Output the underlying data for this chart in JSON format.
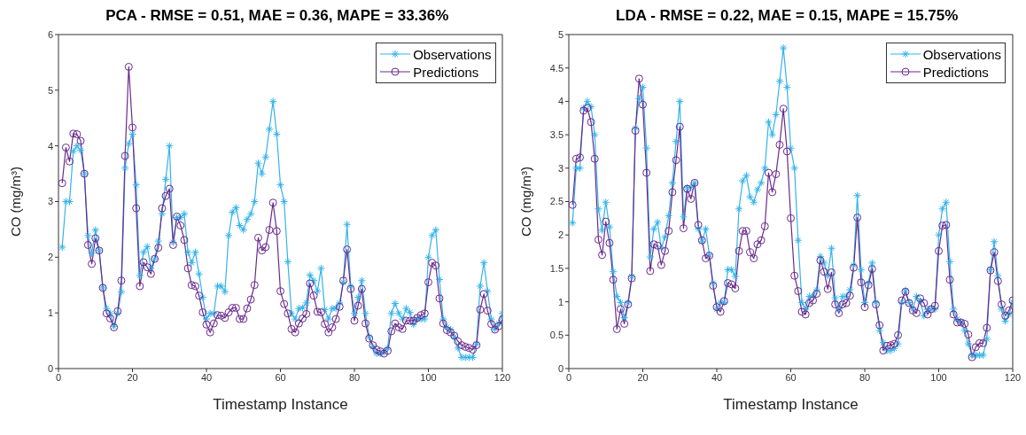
{
  "chart_data": [
    {
      "type": "line",
      "title": "PCA - RMSE = 0.51, MAE = 0.36, MAPE = 33.36%",
      "xlabel": "Timestamp Instance",
      "ylabel": "CO (mg/m³)",
      "x": [
        1,
        2,
        3,
        4,
        5,
        6,
        7,
        8,
        9,
        10,
        11,
        12,
        13,
        14,
        15,
        16,
        17,
        18,
        19,
        20,
        21,
        22,
        23,
        24,
        25,
        26,
        27,
        28,
        29,
        30,
        31,
        32,
        33,
        34,
        35,
        36,
        37,
        38,
        39,
        40,
        41,
        42,
        43,
        44,
        45,
        46,
        47,
        48,
        49,
        50,
        51,
        52,
        53,
        54,
        55,
        56,
        57,
        58,
        59,
        60,
        61,
        62,
        63,
        64,
        65,
        66,
        67,
        68,
        69,
        70,
        71,
        72,
        73,
        74,
        75,
        76,
        77,
        78,
        79,
        80,
        81,
        82,
        83,
        84,
        85,
        86,
        87,
        88,
        89,
        90,
        91,
        92,
        93,
        94,
        95,
        96,
        97,
        98,
        99,
        100,
        101,
        102,
        103,
        104,
        105,
        106,
        107,
        108,
        109,
        110,
        111,
        112,
        113,
        114,
        115,
        116,
        117,
        118,
        119,
        120
      ],
      "series": [
        {
          "name": "Observations",
          "color": "#35b3ea",
          "marker": "cross",
          "values": [
            2.18,
            3.0,
            3.0,
            3.9,
            4.0,
            3.92,
            3.5,
            2.39,
            2.07,
            2.49,
            2.12,
            1.45,
            1.08,
            0.99,
            0.76,
            0.99,
            1.38,
            3.6,
            4.04,
            4.21,
            3.3,
            1.67,
            2.09,
            2.19,
            1.8,
            1.97,
            2.29,
            2.78,
            3.4,
            4.0,
            2.27,
            2.71,
            2.71,
            2.78,
            2.09,
            1.9,
            2.09,
            1.7,
            1.28,
            0.89,
            0.99,
            0.99,
            1.48,
            1.48,
            1.38,
            2.39,
            2.81,
            2.89,
            2.57,
            2.49,
            2.68,
            2.78,
            3.0,
            3.69,
            3.5,
            3.8,
            4.3,
            4.8,
            4.21,
            3.3,
            3.0,
            1.92,
            0.99,
            0.89,
            1.08,
            1.09,
            1.18,
            1.68,
            1.58,
            1.39,
            1.8,
            1.06,
            0.89,
            1.08,
            1.08,
            1.18,
            1.55,
            2.59,
            1.48,
            0.99,
            1.28,
            1.58,
            0.99,
            0.57,
            0.39,
            0.27,
            0.27,
            0.3,
            0.37,
            0.99,
            1.17,
            0.99,
            0.89,
            1.08,
            1.01,
            0.79,
            0.89,
            0.89,
            0.89,
            2.0,
            2.39,
            2.49,
            1.6,
            0.89,
            0.74,
            0.7,
            0.57,
            0.37,
            0.2,
            0.2,
            0.2,
            0.2,
            0.44,
            1.48,
            1.9,
            1.39,
            0.89,
            0.71,
            0.81,
            0.99
          ]
        },
        {
          "name": "Predictions",
          "color": "#6a2a8c",
          "marker": "circle",
          "values": [
            3.33,
            3.97,
            3.72,
            4.22,
            4.21,
            4.09,
            3.5,
            2.22,
            1.88,
            2.34,
            2.12,
            1.45,
            0.99,
            0.9,
            0.74,
            1.03,
            1.58,
            3.82,
            5.42,
            4.33,
            2.88,
            1.48,
            1.91,
            1.82,
            1.7,
            1.97,
            2.17,
            2.88,
            3.1,
            3.23,
            2.22,
            2.73,
            2.57,
            2.31,
            1.8,
            1.5,
            1.48,
            1.31,
            1.01,
            0.79,
            0.65,
            0.81,
            0.96,
            0.95,
            0.91,
            1.01,
            1.09,
            1.09,
            0.89,
            0.89,
            1.08,
            1.24,
            1.5,
            2.35,
            2.12,
            2.18,
            2.49,
            2.98,
            2.47,
            1.39,
            1.16,
            0.99,
            0.71,
            0.65,
            0.81,
            0.9,
            0.98,
            1.53,
            1.31,
            1.02,
            1.01,
            0.8,
            0.65,
            0.74,
            0.89,
            1.11,
            1.58,
            2.14,
            1.43,
            0.86,
            1.13,
            1.43,
            0.81,
            0.54,
            0.42,
            0.34,
            0.31,
            0.27,
            0.32,
            0.67,
            0.81,
            0.74,
            0.71,
            0.86,
            0.86,
            0.86,
            0.91,
            0.96,
            0.99,
            1.55,
            1.9,
            1.85,
            1.26,
            0.81,
            0.69,
            0.65,
            0.59,
            0.49,
            0.42,
            0.39,
            0.37,
            0.34,
            0.42,
            1.06,
            1.34,
            1.04,
            0.8,
            0.7,
            0.76,
            0.88
          ]
        }
      ],
      "xlim": [
        0,
        120
      ],
      "xticks": [
        0,
        20,
        40,
        60,
        80,
        100,
        120
      ],
      "ylim": [
        0,
        6
      ],
      "yticks": [
        0,
        1,
        2,
        3,
        4,
        5,
        6
      ],
      "legend": "top right",
      "line_style": "solid"
    },
    {
      "type": "line",
      "title": "LDA - RMSE = 0.22, MAE = 0.15, MAPE = 15.75%",
      "xlabel": "Timestamp Instance",
      "ylabel": "CO (mg/m³)",
      "x": [
        1,
        2,
        3,
        4,
        5,
        6,
        7,
        8,
        9,
        10,
        11,
        12,
        13,
        14,
        15,
        16,
        17,
        18,
        19,
        20,
        21,
        22,
        23,
        24,
        25,
        26,
        27,
        28,
        29,
        30,
        31,
        32,
        33,
        34,
        35,
        36,
        37,
        38,
        39,
        40,
        41,
        42,
        43,
        44,
        45,
        46,
        47,
        48,
        49,
        50,
        51,
        52,
        53,
        54,
        55,
        56,
        57,
        58,
        59,
        60,
        61,
        62,
        63,
        64,
        65,
        66,
        67,
        68,
        69,
        70,
        71,
        72,
        73,
        74,
        75,
        76,
        77,
        78,
        79,
        80,
        81,
        82,
        83,
        84,
        85,
        86,
        87,
        88,
        89,
        90,
        91,
        92,
        93,
        94,
        95,
        96,
        97,
        98,
        99,
        100,
        101,
        102,
        103,
        104,
        105,
        106,
        107,
        108,
        109,
        110,
        111,
        112,
        113,
        114,
        115,
        116,
        117,
        118,
        119,
        120
      ],
      "series": [
        {
          "name": "Observations",
          "color": "#35b3ea",
          "marker": "cross",
          "values": [
            2.18,
            3.0,
            3.0,
            3.9,
            4.0,
            3.92,
            3.5,
            2.39,
            2.07,
            2.49,
            2.12,
            1.45,
            1.08,
            0.99,
            0.76,
            0.99,
            1.38,
            3.6,
            4.04,
            4.21,
            3.3,
            1.67,
            2.09,
            2.19,
            1.8,
            1.97,
            2.29,
            2.78,
            3.4,
            4.0,
            2.27,
            2.71,
            2.71,
            2.78,
            2.09,
            1.9,
            2.09,
            1.7,
            1.28,
            0.89,
            0.99,
            0.99,
            1.48,
            1.48,
            1.38,
            2.39,
            2.81,
            2.89,
            2.57,
            2.49,
            2.68,
            2.78,
            3.0,
            3.69,
            3.5,
            3.8,
            4.3,
            4.8,
            4.21,
            3.3,
            3.0,
            1.92,
            0.99,
            0.89,
            1.08,
            1.09,
            1.18,
            1.68,
            1.58,
            1.39,
            1.8,
            1.06,
            0.89,
            1.08,
            1.08,
            1.18,
            1.55,
            2.59,
            1.48,
            0.99,
            1.28,
            1.58,
            0.99,
            0.57,
            0.39,
            0.27,
            0.27,
            0.3,
            0.37,
            0.99,
            1.17,
            0.99,
            0.89,
            1.08,
            1.01,
            0.79,
            0.89,
            0.89,
            0.89,
            2.0,
            2.39,
            2.49,
            1.6,
            0.89,
            0.74,
            0.7,
            0.57,
            0.37,
            0.2,
            0.2,
            0.2,
            0.2,
            0.44,
            1.48,
            1.9,
            1.39,
            0.89,
            0.71,
            0.81,
            0.99
          ]
        },
        {
          "name": "Predictions",
          "color": "#6a2a8c",
          "marker": "circle",
          "values": [
            2.45,
            3.14,
            3.16,
            3.86,
            3.9,
            3.69,
            3.14,
            1.93,
            1.7,
            2.2,
            1.88,
            1.33,
            0.59,
            0.89,
            0.67,
            0.96,
            1.35,
            3.56,
            4.34,
            3.95,
            2.93,
            1.46,
            1.86,
            1.84,
            1.55,
            1.76,
            2.06,
            2.64,
            3.12,
            3.62,
            2.1,
            2.69,
            2.54,
            2.78,
            2.15,
            1.92,
            1.65,
            1.69,
            1.24,
            0.92,
            0.85,
            1.01,
            1.28,
            1.26,
            1.2,
            1.76,
            2.06,
            2.06,
            1.74,
            1.65,
            1.86,
            1.92,
            2.13,
            2.93,
            2.64,
            2.91,
            3.35,
            3.89,
            3.25,
            2.25,
            1.39,
            1.16,
            0.85,
            0.81,
            0.98,
            1.02,
            1.12,
            1.62,
            1.45,
            1.19,
            1.44,
            0.96,
            0.83,
            0.96,
            0.98,
            1.09,
            1.51,
            2.26,
            1.29,
            0.92,
            1.25,
            1.49,
            0.96,
            0.65,
            0.27,
            0.34,
            0.35,
            0.37,
            0.5,
            1.02,
            1.15,
            0.98,
            0.87,
            0.83,
            1.05,
            0.98,
            0.81,
            0.89,
            0.94,
            1.76,
            2.14,
            2.15,
            1.33,
            0.81,
            0.69,
            0.69,
            0.67,
            0.51,
            0.17,
            0.32,
            0.38,
            0.38,
            0.61,
            1.47,
            1.74,
            1.31,
            0.96,
            0.79,
            0.87,
            1.02
          ]
        }
      ],
      "xlim": [
        0,
        120
      ],
      "xticks": [
        0,
        20,
        40,
        60,
        80,
        100,
        120
      ],
      "ylim": [
        0,
        5
      ],
      "yticks": [
        0,
        0.5,
        1,
        1.5,
        2,
        2.5,
        3,
        3.5,
        4,
        4.5,
        5
      ],
      "legend": "top right",
      "line_style": "solid"
    }
  ]
}
